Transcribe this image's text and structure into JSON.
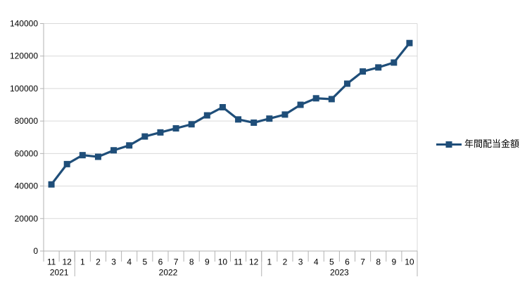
{
  "chart_data": {
    "type": "line",
    "title": "",
    "xlabel": "",
    "ylabel": "",
    "grid": true,
    "legend_position": "right",
    "series": [
      {
        "name": "年間配当金額",
        "color": "#1F4E79",
        "values": [
          41000,
          53500,
          59000,
          58000,
          62000,
          65000,
          70500,
          73000,
          75500,
          78000,
          83500,
          88500,
          81000,
          79000,
          81500,
          84000,
          90000,
          94000,
          93500,
          103000,
          110500,
          113000,
          116000,
          128000
        ]
      }
    ],
    "x": {
      "months": [
        "11",
        "12",
        "1",
        "2",
        "3",
        "4",
        "5",
        "6",
        "7",
        "8",
        "9",
        "10",
        "11",
        "12",
        "1",
        "2",
        "3",
        "4",
        "5",
        "6",
        "7",
        "8",
        "9",
        "10"
      ],
      "year_groups": [
        {
          "label": "2021",
          "count": 2
        },
        {
          "label": "2022",
          "count": 12
        },
        {
          "label": "2023",
          "count": 10
        }
      ]
    },
    "y": {
      "min": 0,
      "max": 140000,
      "step": 20000,
      "tick_labels": [
        "0",
        "20000",
        "40000",
        "60000",
        "80000",
        "100000",
        "120000",
        "140000"
      ]
    }
  },
  "colors": {
    "background": "#FFFFFF",
    "series": "#1F4E79",
    "gridline": "#D9D9D9",
    "axis": "#B3B3B3",
    "text": "#000000"
  }
}
